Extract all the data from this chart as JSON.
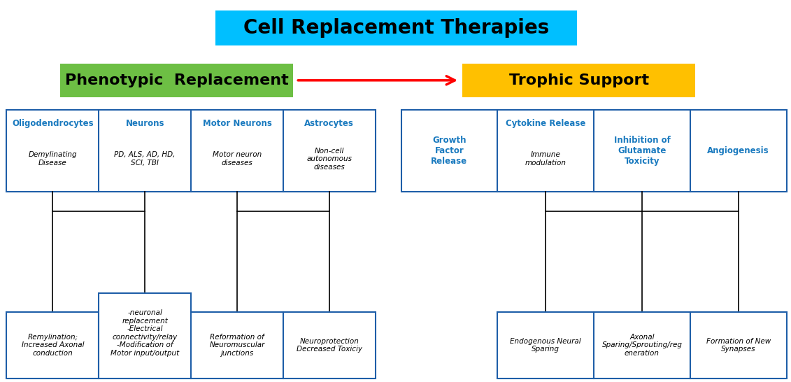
{
  "title": "Cell Replacement Therapies",
  "title_bg": "#00BFFF",
  "title_fontsize": 20,
  "left_header": "Phenotypic  Replacement",
  "left_header_bg": "#6DBF44",
  "right_header": "Trophic Support",
  "right_header_bg": "#FFC000",
  "header_fontsize": 16,
  "arrow_color": "red",
  "box_edge_color": "#1E5EA8",
  "blue_text": "#1a7abf",
  "black_text": "#000000",
  "bg_color": "#FFFFFF",
  "lt_boxes": [
    {
      "title": "Oligodendrocytes",
      "body": "Demylinating\nDisease"
    },
    {
      "title": "Neurons",
      "body": "PD, ALS, AD, HD,\nSCI, TBI"
    },
    {
      "title": "Motor Neurons",
      "body": "Motor neuron\ndiseases"
    },
    {
      "title": "Astrocytes",
      "body": "Non-cell\nautonomous\ndiseases"
    }
  ],
  "lb_boxes": [
    {
      "body": "Remylination;\nIncreased Axonal\nconduction"
    },
    {
      "body": "-neuronal\nreplacement\n-Electrical\nconnectivity/relay\n-Modification of\nMotor input/output"
    },
    {
      "body": "Reformation of\nNeuromuscular\njunctions"
    },
    {
      "body": "Neuroprotection\nDecreased Toxiciy"
    }
  ],
  "rt_boxes": [
    {
      "title": "Growth\nFactor\nRelease",
      "body": ""
    },
    {
      "title": "Cytokine Release",
      "body": "Immune\nmodulation"
    },
    {
      "title": "Inhibition of\nGlutamate\nToxicity",
      "body": ""
    },
    {
      "title": "Angiogenesis",
      "body": ""
    }
  ],
  "rb_boxes": [
    {
      "body": "Endogenous Neural\nSparing"
    },
    {
      "body": "Axonal\nSparing/Sprouting/reg\neneration"
    },
    {
      "body": "Formation of New\nSynapses"
    }
  ]
}
